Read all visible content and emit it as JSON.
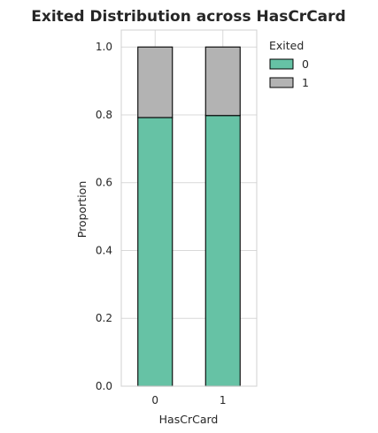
{
  "chart_data": {
    "type": "bar",
    "stacked": true,
    "title": "Exited Distribution across HasCrCard",
    "xlabel": "HasCrCard",
    "ylabel": "Proportion",
    "categories": [
      "0",
      "1"
    ],
    "series": [
      {
        "name": "0",
        "values": [
          0.792,
          0.798
        ],
        "color": "#66c2a5"
      },
      {
        "name": "1",
        "values": [
          0.208,
          0.202
        ],
        "color": "#b3b3b3"
      }
    ],
    "ylim": [
      0,
      1.05
    ],
    "yticks": [
      "0.0",
      "0.2",
      "0.4",
      "0.6",
      "0.8",
      "1.0"
    ],
    "grid": true,
    "legend": {
      "title": "Exited",
      "placement": "outside-top-right"
    }
  }
}
